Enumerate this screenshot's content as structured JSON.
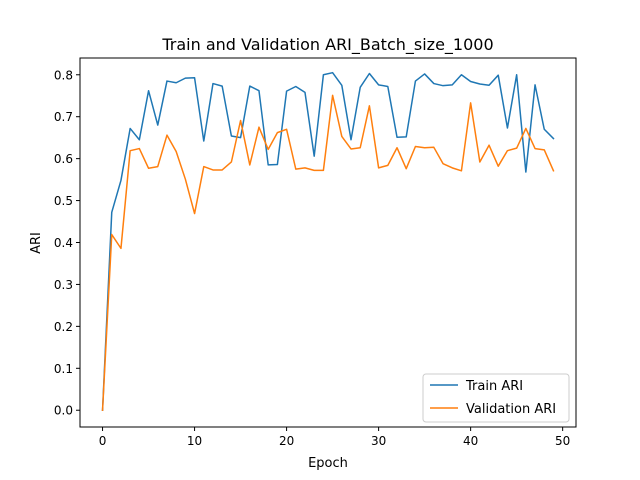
{
  "chart_data": {
    "type": "line",
    "title": "Train and Validation ARI_Batch_size_1000",
    "xlabel": "Epoch",
    "ylabel": "ARI",
    "xlim": [
      -2.45,
      51.45
    ],
    "ylim": [
      -0.04,
      0.84
    ],
    "xticks": [
      "0",
      "10",
      "20",
      "30",
      "40",
      "50"
    ],
    "xtick_values": [
      0,
      10,
      20,
      30,
      40,
      50
    ],
    "yticks": [
      "0.0",
      "0.1",
      "0.2",
      "0.3",
      "0.4",
      "0.5",
      "0.6",
      "0.7",
      "0.8"
    ],
    "ytick_values": [
      0.0,
      0.1,
      0.2,
      0.3,
      0.4,
      0.5,
      0.6,
      0.7,
      0.8
    ],
    "grid": false,
    "legend_position": "bottom-right",
    "x": [
      0,
      1,
      2,
      3,
      4,
      5,
      6,
      7,
      8,
      9,
      10,
      11,
      12,
      13,
      14,
      15,
      16,
      17,
      18,
      19,
      20,
      21,
      22,
      23,
      24,
      25,
      26,
      27,
      28,
      29,
      30,
      31,
      32,
      33,
      34,
      35,
      36,
      37,
      38,
      39,
      40,
      41,
      42,
      43,
      44,
      45,
      46,
      47,
      48,
      49
    ],
    "series": [
      {
        "name": "Train ARI",
        "color": "#1f77b4",
        "values": [
          0.0,
          0.472,
          0.548,
          0.672,
          0.645,
          0.762,
          0.68,
          0.785,
          0.781,
          0.792,
          0.793,
          0.642,
          0.779,
          0.773,
          0.654,
          0.65,
          0.773,
          0.762,
          0.585,
          0.586,
          0.761,
          0.772,
          0.758,
          0.606,
          0.8,
          0.805,
          0.775,
          0.645,
          0.77,
          0.803,
          0.776,
          0.772,
          0.651,
          0.652,
          0.785,
          0.802,
          0.779,
          0.774,
          0.776,
          0.8,
          0.784,
          0.778,
          0.775,
          0.799,
          0.673,
          0.8,
          0.568,
          0.776,
          0.67,
          0.648
        ]
      },
      {
        "name": "Validation ARI",
        "color": "#ff7f0e",
        "values": [
          0.0,
          0.419,
          0.386,
          0.619,
          0.624,
          0.577,
          0.581,
          0.656,
          0.617,
          0.551,
          0.469,
          0.581,
          0.573,
          0.573,
          0.592,
          0.691,
          0.585,
          0.675,
          0.622,
          0.662,
          0.67,
          0.575,
          0.578,
          0.572,
          0.572,
          0.751,
          0.653,
          0.623,
          0.626,
          0.726,
          0.578,
          0.584,
          0.626,
          0.576,
          0.629,
          0.626,
          0.627,
          0.588,
          0.578,
          0.571,
          0.733,
          0.592,
          0.632,
          0.582,
          0.619,
          0.625,
          0.672,
          0.624,
          0.621,
          0.571
        ]
      }
    ]
  }
}
